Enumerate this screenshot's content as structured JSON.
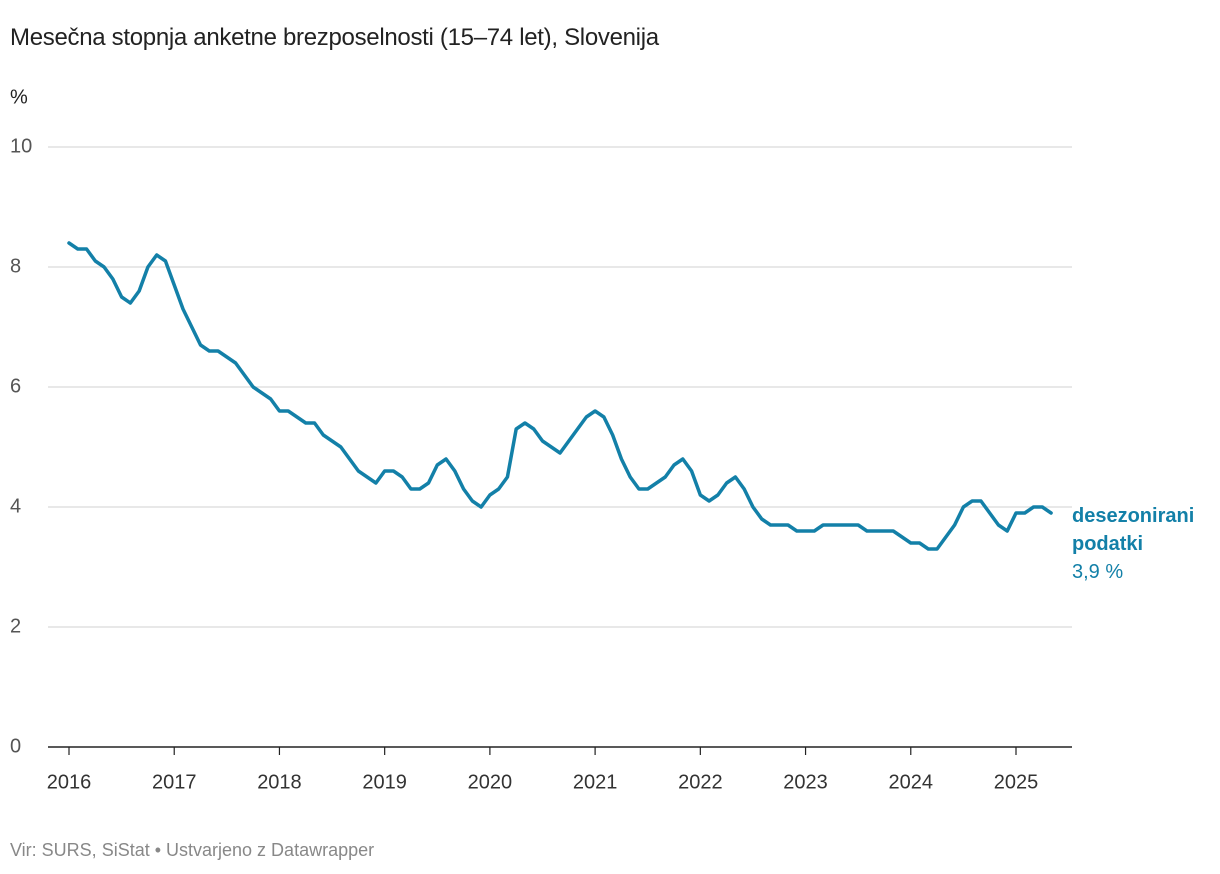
{
  "chart_data": {
    "type": "line",
    "title": "Mesečna stopnja anketne brezposelnosti (15–74 let), Slovenija",
    "y_label": "%",
    "source": "Vir: SURS, SiStat • Ustvarjeno z Datawrapper",
    "categories": [
      "2016",
      null,
      null,
      null,
      null,
      null,
      null,
      null,
      null,
      null,
      null,
      null,
      "2017",
      null,
      null,
      null,
      null,
      null,
      null,
      null,
      null,
      null,
      null,
      null,
      "2018",
      null,
      null,
      null,
      null,
      null,
      null,
      null,
      null,
      null,
      null,
      null,
      "2019",
      null,
      null,
      null,
      null,
      null,
      null,
      null,
      null,
      null,
      null,
      null,
      "2020",
      null,
      null,
      null,
      null,
      null,
      null,
      null,
      null,
      null,
      null,
      null,
      "2021",
      null,
      null,
      null,
      null,
      null,
      null,
      null,
      null,
      null,
      null,
      null,
      "2022",
      null,
      null,
      null,
      null,
      null,
      null,
      null,
      null,
      null,
      null,
      null,
      "2023",
      null,
      null,
      null,
      null,
      null,
      null,
      null,
      null,
      null,
      null,
      null,
      "2024",
      null,
      null,
      null,
      null,
      null,
      null,
      null,
      null,
      null,
      null,
      null,
      "2025",
      null,
      null,
      null,
      null
    ],
    "series": [
      {
        "name": "desezonirani podatki",
        "color": "#1380a8",
        "values": [
          8.4,
          8.3,
          8.3,
          8.1,
          8.0,
          7.8,
          7.5,
          7.4,
          7.6,
          8.0,
          8.2,
          8.1,
          7.7,
          7.3,
          7.0,
          6.7,
          6.6,
          6.6,
          6.5,
          6.4,
          6.2,
          6.0,
          5.9,
          5.8,
          5.6,
          5.6,
          5.5,
          5.4,
          5.4,
          5.2,
          5.1,
          5.0,
          4.8,
          4.6,
          4.5,
          4.4,
          4.6,
          4.6,
          4.5,
          4.3,
          4.3,
          4.4,
          4.7,
          4.8,
          4.6,
          4.3,
          4.1,
          4.0,
          4.2,
          4.3,
          4.5,
          5.3,
          5.4,
          5.3,
          5.1,
          5.0,
          4.9,
          5.1,
          5.3,
          5.5,
          5.6,
          5.5,
          5.2,
          4.8,
          4.5,
          4.3,
          4.3,
          4.4,
          4.5,
          4.7,
          4.8,
          4.6,
          4.2,
          4.1,
          4.2,
          4.4,
          4.5,
          4.3,
          4.0,
          3.8,
          3.7,
          3.7,
          3.7,
          3.6,
          3.6,
          3.6,
          3.7,
          3.7,
          3.7,
          3.7,
          3.7,
          3.6,
          3.6,
          3.6,
          3.6,
          3.5,
          3.4,
          3.4,
          3.3,
          3.3,
          3.5,
          3.7,
          4.0,
          4.1,
          4.1,
          3.9,
          3.7,
          3.6,
          3.9,
          3.9,
          4.0,
          4.0,
          3.9
        ],
        "value_labels": [
          null,
          null,
          null,
          null,
          null,
          null,
          null,
          null,
          null,
          null,
          null,
          null,
          null,
          null,
          null,
          null,
          null,
          null,
          null,
          null,
          null,
          null,
          null,
          null,
          null,
          null,
          null,
          null,
          null,
          null,
          null,
          null,
          null,
          null,
          null,
          null,
          null,
          null,
          null,
          null,
          null,
          null,
          null,
          null,
          null,
          null,
          null,
          null,
          null,
          null,
          null,
          null,
          null,
          null,
          null,
          null,
          null,
          null,
          null,
          null,
          null,
          null,
          null,
          null,
          null,
          null,
          null,
          null,
          null,
          null,
          null,
          null,
          null,
          null,
          null,
          null,
          null,
          null,
          null,
          null,
          null,
          null,
          null,
          null,
          null,
          null,
          null,
          null,
          null,
          null,
          null,
          null,
          null,
          null,
          null,
          null,
          null,
          null,
          null,
          null,
          null,
          null,
          null,
          null,
          null,
          null,
          null,
          null,
          null,
          null,
          null,
          null,
          "3,9 %"
        ]
      }
    ],
    "ylim": [
      0,
      10
    ],
    "yticks": [
      0,
      2,
      4,
      6,
      8,
      10
    ],
    "grid": true
  }
}
